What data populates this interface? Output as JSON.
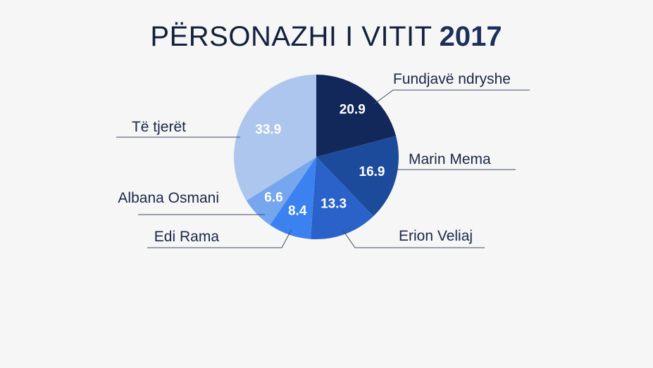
{
  "chart_data": {
    "type": "pie",
    "title": "PËRSONAZHI I VITIT",
    "title_year": "2017",
    "slices": [
      {
        "label": "Fundjavë ndryshe",
        "value": 20.9,
        "value_label": "20.9",
        "color": "#12285a"
      },
      {
        "label": "Marin Mema",
        "value": 16.9,
        "value_label": "16.9",
        "color": "#1d4b9c"
      },
      {
        "label": "Erion Veliaj",
        "value": 13.3,
        "value_label": "13.3",
        "color": "#2a62c9"
      },
      {
        "label": "Edi Rama",
        "value": 8.4,
        "value_label": "8.4",
        "color": "#3b82f0"
      },
      {
        "label": "Albana Osmani",
        "value": 6.6,
        "value_label": "6.6",
        "color": "#75a6ee"
      },
      {
        "label": "Të tjerët",
        "value": 33.9,
        "value_label": "33.9",
        "color": "#adc6ee"
      }
    ]
  }
}
